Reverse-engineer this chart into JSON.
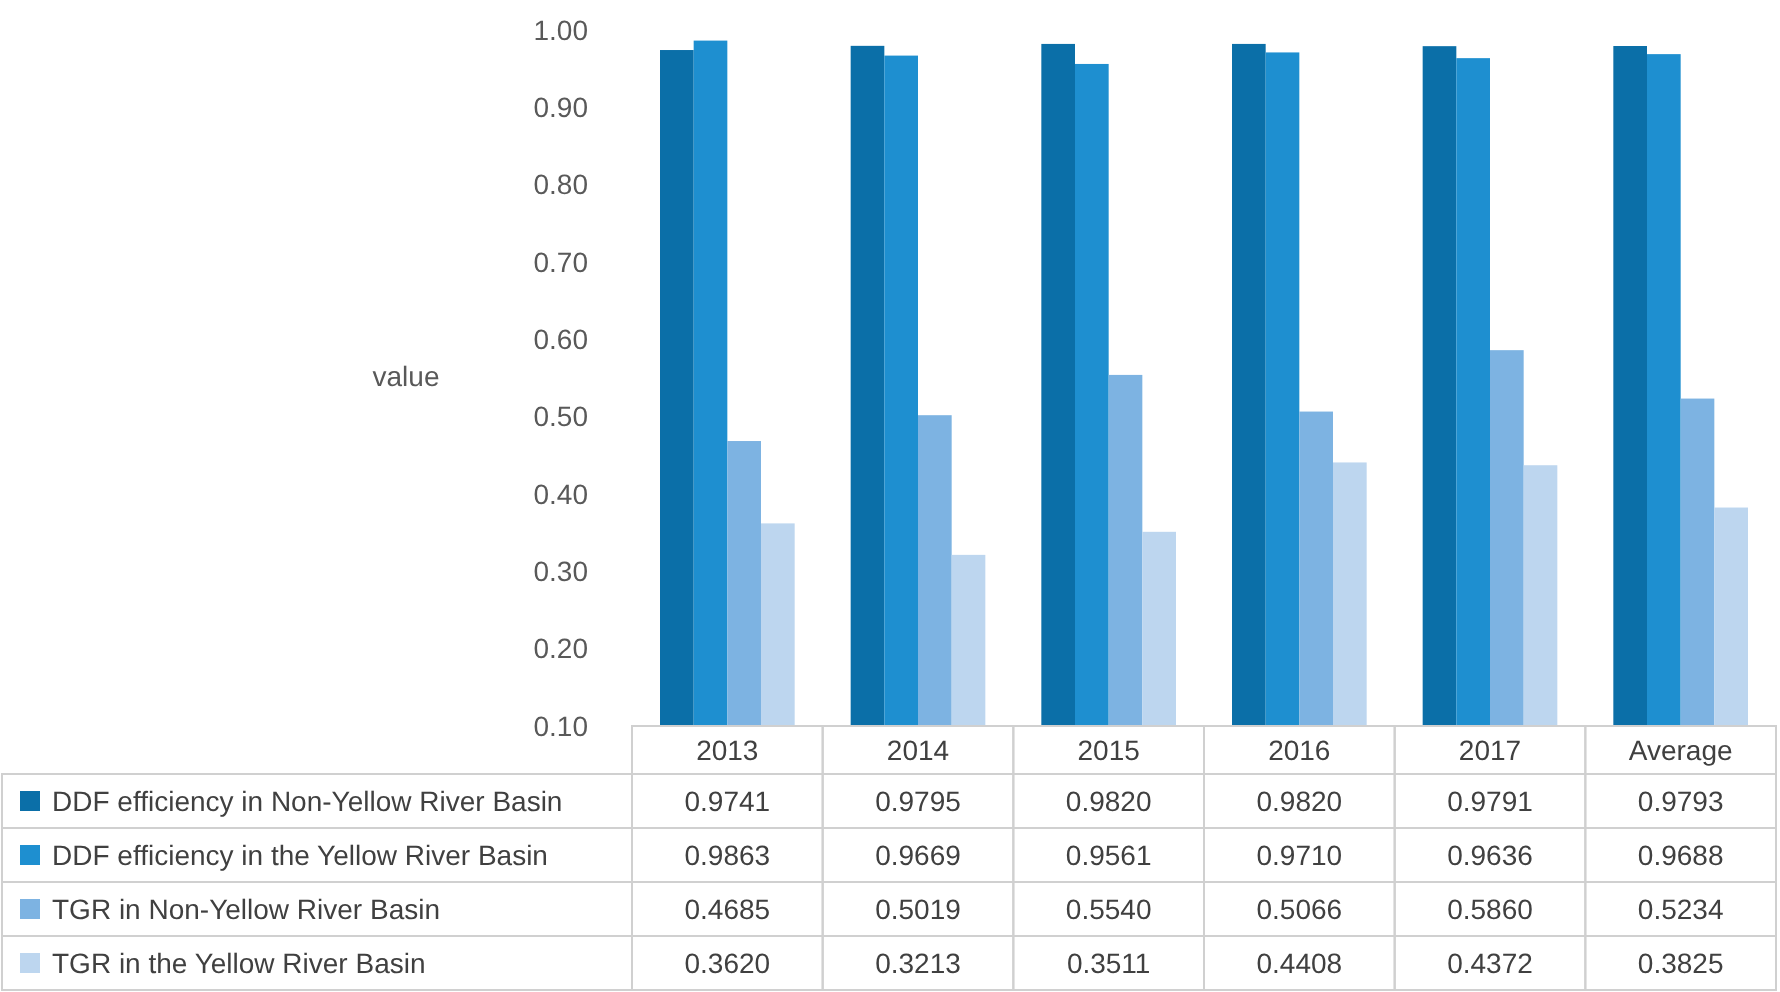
{
  "chart_data": {
    "type": "bar",
    "ylabel": "value",
    "categories": [
      "2013",
      "2014",
      "2015",
      "2016",
      "2017",
      "Average"
    ],
    "series": [
      {
        "name": "DDF efficiency in Non-Yellow River Basin",
        "color": "#0b6fa8",
        "values": [
          0.9741,
          0.9795,
          0.982,
          0.982,
          0.9791,
          0.9793
        ],
        "value_labels": [
          "0.9741",
          "0.9795",
          "0.9820",
          "0.9820",
          "0.9791",
          "0.9793"
        ]
      },
      {
        "name": "DDF efficiency in the Yellow River Basin",
        "color": "#1e8fd0",
        "values": [
          0.9863,
          0.9669,
          0.9561,
          0.971,
          0.9636,
          0.9688
        ],
        "value_labels": [
          "0.9863",
          "0.9669",
          "0.9561",
          "0.9710",
          "0.9636",
          "0.9688"
        ]
      },
      {
        "name": "TGR in Non-Yellow River Basin",
        "color": "#7db3e2",
        "values": [
          0.4685,
          0.5019,
          0.554,
          0.5066,
          0.586,
          0.5234
        ],
        "value_labels": [
          "0.4685",
          "0.5019",
          "0.5540",
          "0.5066",
          "0.5860",
          "0.5234"
        ]
      },
      {
        "name": "TGR in the Yellow River Basin",
        "color": "#bdd6ef",
        "values": [
          0.362,
          0.3213,
          0.3511,
          0.4408,
          0.4372,
          0.3825
        ],
        "value_labels": [
          "0.3620",
          "0.3213",
          "0.3511",
          "0.4408",
          "0.4372",
          "0.3825"
        ]
      }
    ],
    "ylim": [
      0.1,
      1.0
    ],
    "yticks": [
      {
        "value": 0.1,
        "label": "0.10"
      },
      {
        "value": 0.2,
        "label": "0.20"
      },
      {
        "value": 0.3,
        "label": "0.30"
      },
      {
        "value": 0.4,
        "label": "0.40"
      },
      {
        "value": 0.5,
        "label": "0.50"
      },
      {
        "value": 0.6,
        "label": "0.60"
      },
      {
        "value": 0.7,
        "label": "0.70"
      },
      {
        "value": 0.8,
        "label": "0.80"
      },
      {
        "value": 0.9,
        "label": "0.90"
      },
      {
        "value": 1.0,
        "label": "1.00"
      }
    ],
    "legend": "bottom",
    "grid": false
  }
}
